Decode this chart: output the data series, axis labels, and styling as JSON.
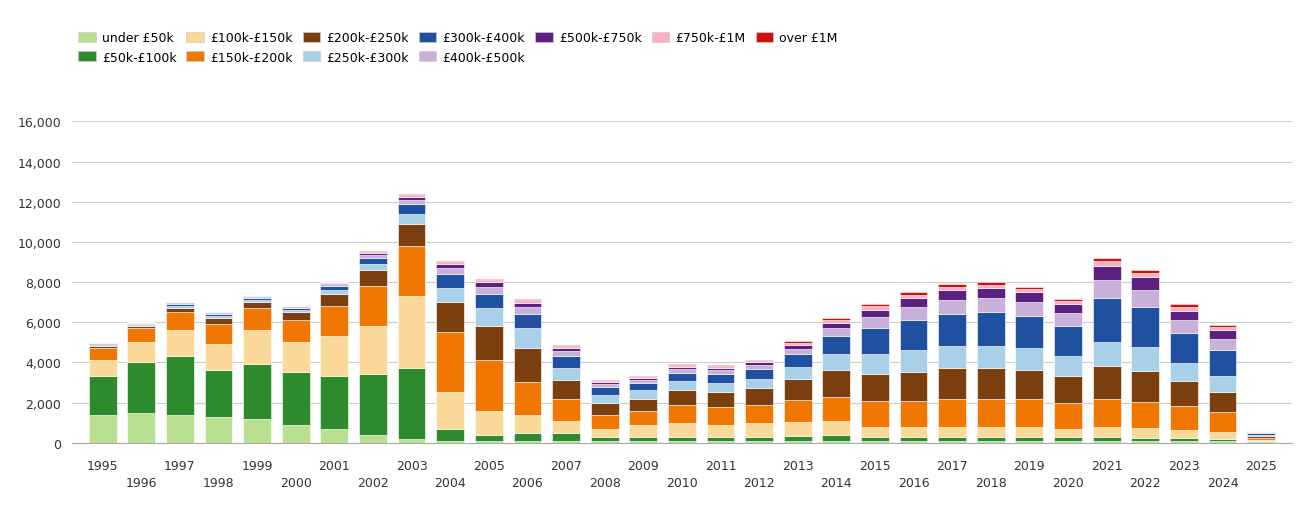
{
  "years": [
    1995,
    1996,
    1997,
    1998,
    1999,
    2000,
    2001,
    2002,
    2003,
    2004,
    2005,
    2006,
    2007,
    2008,
    2009,
    2010,
    2011,
    2012,
    2013,
    2014,
    2015,
    2016,
    2017,
    2018,
    2019,
    2020,
    2021,
    2022,
    2023,
    2024,
    2025
  ],
  "categories": [
    "under £50k",
    "£50k-£100k",
    "£100k-£150k",
    "£150k-£200k",
    "£200k-£250k",
    "£250k-£300k",
    "£300k-£400k",
    "£400k-£500k",
    "£500k-£750k",
    "£750k-£1M",
    "over £1M"
  ],
  "colors": [
    "#b8e090",
    "#2d8a2d",
    "#fad898",
    "#f07800",
    "#7c4010",
    "#a8d0e8",
    "#2050a0",
    "#c8b0d8",
    "#5c2080",
    "#f8b0c0",
    "#d01010"
  ],
  "data": {
    "under £50k": [
      1400,
      1500,
      1400,
      1300,
      1200,
      900,
      700,
      400,
      200,
      100,
      100,
      100,
      100,
      100,
      100,
      100,
      100,
      100,
      100,
      100,
      100,
      100,
      100,
      100,
      100,
      100,
      100,
      100,
      100,
      80,
      50
    ],
    "£50k-£100k": [
      1900,
      2500,
      2900,
      2300,
      2700,
      2600,
      2600,
      3000,
      3500,
      600,
      300,
      400,
      400,
      200,
      200,
      200,
      200,
      200,
      250,
      300,
      200,
      200,
      200,
      200,
      200,
      200,
      200,
      150,
      150,
      100,
      50
    ],
    "£100k-£150k": [
      800,
      1000,
      1300,
      1300,
      1700,
      1500,
      2000,
      2400,
      3600,
      1800,
      1200,
      900,
      600,
      400,
      600,
      700,
      600,
      700,
      700,
      700,
      500,
      500,
      500,
      500,
      500,
      400,
      500,
      500,
      400,
      350,
      50
    ],
    "£150k-£200k": [
      600,
      700,
      900,
      1000,
      1100,
      1100,
      1500,
      2000,
      2500,
      3000,
      2500,
      1600,
      1100,
      700,
      700,
      900,
      900,
      900,
      1100,
      1200,
      1300,
      1300,
      1400,
      1400,
      1400,
      1300,
      1400,
      1300,
      1200,
      1000,
      100
    ],
    "£200k-£250k": [
      100,
      100,
      200,
      300,
      300,
      400,
      600,
      800,
      1100,
      1500,
      1700,
      1700,
      900,
      600,
      600,
      700,
      700,
      800,
      1000,
      1300,
      1300,
      1400,
      1500,
      1500,
      1400,
      1300,
      1600,
      1500,
      1200,
      1000,
      100
    ],
    "£250k-£300k": [
      50,
      60,
      100,
      100,
      100,
      100,
      200,
      300,
      500,
      700,
      900,
      1000,
      600,
      400,
      400,
      450,
      450,
      450,
      600,
      800,
      1000,
      1100,
      1100,
      1100,
      1100,
      1000,
      1200,
      1200,
      900,
      800,
      50
    ],
    "£300k-£400k": [
      50,
      60,
      100,
      100,
      100,
      100,
      200,
      300,
      500,
      700,
      700,
      700,
      600,
      350,
      350,
      400,
      450,
      500,
      650,
      900,
      1300,
      1500,
      1600,
      1700,
      1600,
      1500,
      2200,
      2000,
      1500,
      1300,
      100
    ],
    "£400k-£500k": [
      30,
      30,
      50,
      50,
      50,
      50,
      80,
      150,
      200,
      300,
      350,
      350,
      250,
      150,
      150,
      200,
      200,
      200,
      280,
      400,
      550,
      650,
      700,
      700,
      700,
      650,
      900,
      850,
      650,
      550,
      30
    ],
    "£500k-£750k": [
      20,
      25,
      40,
      40,
      40,
      40,
      70,
      100,
      150,
      200,
      230,
      230,
      180,
      100,
      100,
      130,
      140,
      150,
      200,
      280,
      380,
      450,
      500,
      500,
      490,
      450,
      680,
      650,
      480,
      430,
      20
    ],
    "£750k-£1M": [
      15,
      15,
      20,
      20,
      20,
      20,
      30,
      60,
      80,
      90,
      110,
      110,
      90,
      60,
      60,
      70,
      70,
      70,
      90,
      120,
      160,
      170,
      170,
      170,
      160,
      150,
      270,
      220,
      200,
      160,
      10
    ],
    "over £1M": [
      15,
      15,
      20,
      20,
      20,
      20,
      30,
      50,
      60,
      70,
      80,
      80,
      60,
      40,
      40,
      50,
      50,
      50,
      70,
      90,
      110,
      120,
      130,
      130,
      120,
      110,
      170,
      130,
      120,
      110,
      10
    ]
  },
  "ylim": [
    0,
    16000
  ],
  "yticks": [
    0,
    2000,
    4000,
    6000,
    8000,
    10000,
    12000,
    14000,
    16000
  ],
  "background_color": "#ffffff",
  "grid_color": "#cccccc"
}
